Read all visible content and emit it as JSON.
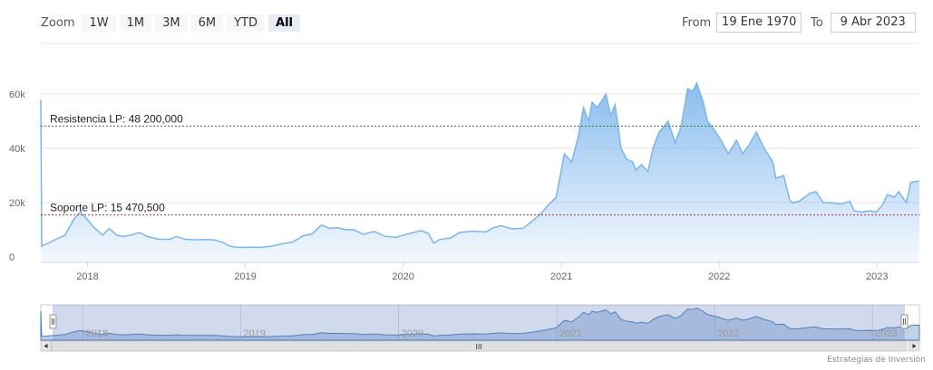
{
  "zoom": {
    "label": "Zoom",
    "buttons": [
      "1W",
      "1M",
      "3M",
      "6M",
      "YTD",
      "All"
    ],
    "active": "All"
  },
  "range": {
    "from_label": "From",
    "from_value": "19 Ene 1970",
    "to_label": "To",
    "to_value": "9 Abr 2023"
  },
  "credit": "Estrategias de Inversión",
  "colors": {
    "series": "#7cb5ec",
    "resistance": "#2e7d32",
    "support": "#c62828"
  },
  "chart_data": {
    "type": "area",
    "ylim": [
      0,
      70000
    ],
    "yticks": [
      0,
      20000,
      40000,
      60000
    ],
    "ytick_labels": [
      "0",
      "20k",
      "40k",
      "60k"
    ],
    "xlim": [
      "2017-09-15",
      "2023-04-09"
    ],
    "xticks": [
      "2018-01-01",
      "2019-01-01",
      "2020-01-01",
      "2021-01-01",
      "2022-01-01",
      "2023-01-01"
    ],
    "xtick_labels": [
      "2018",
      "2019",
      "2020",
      "2021",
      "2022",
      "2023"
    ],
    "series": [
      {
        "x": [
          "2017-09-15",
          "2017-09-17",
          "2017-10-01",
          "2017-10-20",
          "2017-11-10",
          "2017-12-01",
          "2017-12-15",
          "2017-12-28",
          "2018-01-15",
          "2018-02-05",
          "2018-02-20",
          "2018-03-10",
          "2018-03-25",
          "2018-04-10",
          "2018-05-01",
          "2018-05-20",
          "2018-06-15",
          "2018-07-10",
          "2018-07-25",
          "2018-08-15",
          "2018-09-10",
          "2018-10-01",
          "2018-10-20",
          "2018-11-10",
          "2018-11-25",
          "2018-12-15",
          "2019-01-10",
          "2019-02-01",
          "2019-03-01",
          "2019-04-01",
          "2019-04-20",
          "2019-05-15",
          "2019-06-05",
          "2019-06-26",
          "2019-07-15",
          "2019-08-01",
          "2019-08-20",
          "2019-09-10",
          "2019-09-30",
          "2019-10-26",
          "2019-11-20",
          "2019-12-15",
          "2020-01-15",
          "2020-02-12",
          "2020-02-28",
          "2020-03-12",
          "2020-03-25",
          "2020-04-20",
          "2020-05-10",
          "2020-06-10",
          "2020-07-10",
          "2020-07-28",
          "2020-08-15",
          "2020-09-10",
          "2020-10-05",
          "2020-10-25",
          "2020-11-15",
          "2020-12-01",
          "2020-12-20",
          "2021-01-08",
          "2021-01-25",
          "2021-02-10",
          "2021-02-21",
          "2021-03-05",
          "2021-03-13",
          "2021-03-25",
          "2021-04-14",
          "2021-04-25",
          "2021-05-05",
          "2021-05-19",
          "2021-06-01",
          "2021-06-15",
          "2021-06-22",
          "2021-07-05",
          "2021-07-20",
          "2021-08-01",
          "2021-08-15",
          "2021-09-05",
          "2021-09-21",
          "2021-10-05",
          "2021-10-20",
          "2021-11-01",
          "2021-11-10",
          "2021-11-25",
          "2021-12-05",
          "2021-12-20",
          "2022-01-05",
          "2022-01-22",
          "2022-02-10",
          "2022-02-24",
          "2022-03-10",
          "2022-03-28",
          "2022-04-15",
          "2022-05-05",
          "2022-05-12",
          "2022-05-30",
          "2022-06-13",
          "2022-06-19",
          "2022-07-05",
          "2022-07-30",
          "2022-08-13",
          "2022-08-30",
          "2022-09-15",
          "2022-10-10",
          "2022-10-30",
          "2022-11-09",
          "2022-11-25",
          "2022-12-15",
          "2022-12-30",
          "2023-01-13",
          "2023-01-25",
          "2023-02-10",
          "2023-02-20",
          "2023-03-10",
          "2023-03-20",
          "2023-04-09"
        ],
        "values": [
          58000,
          4000,
          5000,
          6500,
          8000,
          14000,
          16500,
          14500,
          11000,
          8000,
          10500,
          8000,
          7500,
          8000,
          9000,
          7500,
          6500,
          6500,
          7500,
          6500,
          6300,
          6400,
          6300,
          5400,
          4000,
          3500,
          3600,
          3500,
          3900,
          5000,
          5400,
          7800,
          8500,
          11800,
          10500,
          10800,
          10100,
          10000,
          8300,
          9400,
          7600,
          7200,
          8600,
          9700,
          8700,
          5000,
          6400,
          7000,
          9000,
          9500,
          9200,
          10800,
          11500,
          10300,
          10600,
          13100,
          16000,
          19000,
          22000,
          38000,
          35000,
          45000,
          55000,
          50000,
          57000,
          55000,
          60000,
          52000,
          56000,
          40000,
          36000,
          35000,
          32000,
          34000,
          31500,
          40000,
          46000,
          50000,
          42000,
          48000,
          62000,
          61000,
          64000,
          57000,
          50000,
          47000,
          43000,
          38000,
          43000,
          38000,
          41000,
          46000,
          40000,
          35000,
          29000,
          30000,
          21000,
          20000,
          20500,
          23500,
          24000,
          20000,
          20000,
          19500,
          20500,
          17000,
          16500,
          17000,
          16500,
          19000,
          23000,
          22000,
          24000,
          20000,
          27500,
          28000
        ]
      }
    ],
    "annotations": [
      {
        "label": "Resistencia LP: 48 200,000",
        "value": 48200
      },
      {
        "label": "Soporte LP: 15 470,500",
        "value": 15470.5
      }
    ],
    "navigator": {
      "xtick_labels": [
        "2018",
        "2019",
        "2020",
        "2021",
        "2022",
        "2023"
      ],
      "scroll_grip": "III"
    },
    "grid": true,
    "legend": false
  }
}
